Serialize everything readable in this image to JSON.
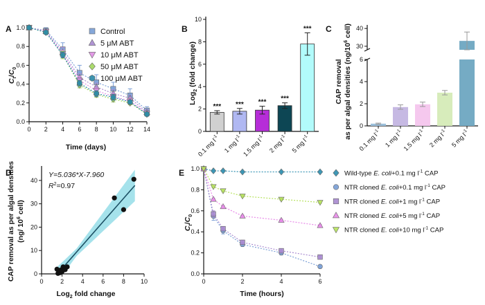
{
  "chart_data": [
    {
      "panel": "A",
      "type": "line",
      "xlabel_main": "Time",
      "xlabel_unit": "(days)",
      "ylabel": "Ct/C0",
      "ylabel_parts": {
        "c": "C",
        "t": "t",
        "sep": "/",
        "zero": "0"
      },
      "x": [
        0,
        2,
        4,
        6,
        8,
        10,
        12,
        14
      ],
      "xlim": [
        0,
        14
      ],
      "ylim": [
        0,
        1.0
      ],
      "xticks": [
        "0",
        "2",
        "4",
        "6",
        "8",
        "10",
        "12",
        "14"
      ],
      "yticks": [
        "0.0",
        "0.2",
        "0.4",
        "0.6",
        "0.8",
        "1.0"
      ],
      "series": [
        {
          "name": "Control",
          "marker": "square",
          "color": "#7b9fd6",
          "values": [
            1.0,
            0.97,
            0.77,
            0.52,
            0.42,
            0.35,
            0.28,
            0.12
          ],
          "errors": [
            0.02,
            0.03,
            0.07,
            0.08,
            0.08,
            0.07,
            0.07,
            0.04
          ]
        },
        {
          "name": "5 μM ABT",
          "marker": "triangle-up",
          "color": "#a98bd0",
          "values": [
            1.0,
            0.96,
            0.74,
            0.47,
            0.37,
            0.3,
            0.25,
            0.1
          ],
          "errors": [
            0.02,
            0.02,
            0.05,
            0.04,
            0.04,
            0.04,
            0.03,
            0.03
          ]
        },
        {
          "name": "10 μM ABT",
          "marker": "triangle-down",
          "color": "#e090e4",
          "values": [
            1.0,
            0.96,
            0.72,
            0.44,
            0.33,
            0.27,
            0.22,
            0.09
          ],
          "errors": [
            0.02,
            0.02,
            0.04,
            0.04,
            0.03,
            0.03,
            0.03,
            0.02
          ]
        },
        {
          "name": "50 μM ABT",
          "marker": "diamond",
          "color": "#a4d860",
          "values": [
            1.0,
            0.95,
            0.71,
            0.39,
            0.29,
            0.24,
            0.2,
            0.08
          ],
          "errors": [
            0.02,
            0.02,
            0.04,
            0.03,
            0.03,
            0.03,
            0.02,
            0.02
          ]
        },
        {
          "name": "100 μM ABT",
          "marker": "hexagon",
          "color": "#2b8aa8",
          "values": [
            1.0,
            0.95,
            0.71,
            0.41,
            0.3,
            0.26,
            0.21,
            0.08
          ],
          "errors": [
            0.02,
            0.02,
            0.03,
            0.03,
            0.03,
            0.03,
            0.02,
            0.02
          ]
        }
      ]
    },
    {
      "panel": "B",
      "type": "bar",
      "ylabel": "Log2 (fold change)",
      "ylabel_parts": {
        "pre": "Log",
        "sub": "2",
        "post": " (fold change)"
      },
      "categories": [
        "0.1 mg l-1",
        "1 mg l-1",
        "1.5 mg l-1",
        "2 mg l-1",
        "5 mg l-1"
      ],
      "category_parts": [
        {
          "n": "0.1 mg l",
          "s": "-1"
        },
        {
          "n": "1 mg l",
          "s": "-1"
        },
        {
          "n": "1.5 mg l",
          "s": "-1"
        },
        {
          "n": "2 mg l",
          "s": "-1"
        },
        {
          "n": "5 mg l",
          "s": "-1"
        }
      ],
      "values": [
        1.7,
        1.8,
        1.9,
        2.3,
        7.8
      ],
      "errors": [
        0.15,
        0.25,
        0.35,
        0.25,
        1.0
      ],
      "colors": [
        "#d0d0d0",
        "#b0b8f2",
        "#b62dd8",
        "#0d4654",
        "#b2fbfb"
      ],
      "annotations": [
        "***",
        "***",
        "***",
        "***",
        "***"
      ],
      "ylim": [
        0,
        10
      ],
      "yticks": [
        "0",
        "2",
        "4",
        "6",
        "8",
        "10"
      ]
    },
    {
      "panel": "C",
      "type": "bar",
      "ylabel_line1": "CAP removal",
      "ylabel_line2_pre": "as per algal densities (ng/10",
      "ylabel_line2_sup": "6",
      "ylabel_line2_post": " cell)",
      "categories": [
        "0.1 mg l-1",
        "1 mg l-1",
        "1.5 mg l-1",
        "2 mg l-1",
        "5 mg l-1"
      ],
      "category_parts": [
        {
          "n": "0.1 mg l",
          "s": "-1"
        },
        {
          "n": "1 mg l",
          "s": "-1"
        },
        {
          "n": "1.5 mg l",
          "s": "-1"
        },
        {
          "n": "2 mg l",
          "s": "-1"
        },
        {
          "n": "5 mg l",
          "s": "-1"
        }
      ],
      "values": [
        0.2,
        1.7,
        1.95,
        3.0,
        33
      ],
      "errors": [
        0.05,
        0.2,
        0.2,
        0.2,
        5
      ],
      "colors": [
        "#9cc0dc",
        "#c6b9e3",
        "#f5c8ee",
        "#d7ecbb",
        "#75abc4"
      ],
      "axis_break": [
        6,
        28
      ],
      "ylim": [
        0,
        42
      ],
      "yticks_lower": [
        "0",
        "2",
        "4",
        "6"
      ],
      "yticks_upper": [
        "30",
        "40"
      ]
    },
    {
      "panel": "D",
      "type": "scatter",
      "xlabel_pre": "Log",
      "xlabel_sub": "2",
      "xlabel_post": " fold change",
      "ylabel_line1": "CAP removal as per algal densities",
      "ylabel_line2_pre": "(ng/ 10",
      "ylabel_line2_sup": "6",
      "ylabel_line2_post": " cell)",
      "points": [
        [
          1.5,
          2.0
        ],
        [
          1.6,
          0.2
        ],
        [
          1.7,
          1.5
        ],
        [
          1.8,
          0.5
        ],
        [
          1.9,
          1.7
        ],
        [
          2.0,
          1.0
        ],
        [
          2.1,
          3.0
        ],
        [
          2.2,
          2.5
        ],
        [
          2.3,
          1.8
        ],
        [
          2.5,
          3.0
        ],
        [
          7.1,
          32.5
        ],
        [
          8.0,
          27.5
        ],
        [
          9.0,
          40.5
        ]
      ],
      "fit_slope": 5.036,
      "fit_intercept": -7.96,
      "equation_pre": "Y=5.036*X-7.960",
      "r2_label": "R",
      "r2_sup": "2",
      "r2_value": "=0.97",
      "xlim": [
        0,
        10
      ],
      "ylim": [
        0,
        45
      ],
      "xticks": [
        "0",
        "2",
        "4",
        "6",
        "8",
        "10"
      ],
      "yticks": [
        "0",
        "10",
        "20",
        "30",
        "40"
      ]
    },
    {
      "panel": "E",
      "type": "line",
      "xlabel": "Time (hours)",
      "ylabel": "Ct/C0",
      "ylabel_parts": {
        "c": "C",
        "t": "t",
        "sep": "/",
        "zero": "0"
      },
      "x": [
        0,
        0.5,
        1,
        2,
        4,
        6
      ],
      "xlim": [
        0,
        6
      ],
      "ylim": [
        0,
        1.0
      ],
      "xticks": [
        "0",
        "2",
        "4",
        "6"
      ],
      "yticks": [
        "0.0",
        "0.2",
        "0.4",
        "0.6",
        "0.8",
        "1.0"
      ],
      "series": [
        {
          "name": "Wild-type E. coli+0.1 mg l-1 CAP",
          "label_pre": "Wild-type ",
          "label_em": "E. coli",
          "label_post": "+0.1 mg l",
          "label_sup": "-1",
          "label_end": " CAP",
          "marker": "diamond",
          "color": "#2f8fb0",
          "values": [
            1.0,
            0.98,
            0.98,
            0.97,
            0.97,
            0.97
          ],
          "errors": [
            0,
            0,
            0,
            0,
            0,
            0
          ]
        },
        {
          "name": "NTR cloned E. coli+0.1 mg l-1 CAP",
          "label_pre": "NTR cloned ",
          "label_em": "E. coli",
          "label_post": "+0.1 mg l",
          "label_sup": "-1",
          "label_end": " CAP",
          "marker": "circle",
          "color": "#7b9fd6",
          "values": [
            1.0,
            0.55,
            0.41,
            0.28,
            0.2,
            0.07
          ],
          "errors": [
            0,
            0.04,
            0.03,
            0.02,
            0.02,
            0.01
          ]
        },
        {
          "name": "NTR cloned E. coli+1 mg l-1 CAP",
          "label_pre": "NTR cloned ",
          "label_em": "E. coli",
          "label_post": "+1 mg l",
          "label_sup": "-1",
          "label_end": " CAP",
          "marker": "square",
          "color": "#a98bd0",
          "values": [
            1.0,
            0.57,
            0.43,
            0.3,
            0.22,
            0.16
          ],
          "errors": [
            0,
            0.03,
            0.02,
            0.02,
            0.02,
            0.01
          ]
        },
        {
          "name": "NTR cloned E. coli+5 mg l-1 CAP",
          "label_pre": "NTR cloned ",
          "label_em": "E. coli",
          "label_post": "+5 mg l",
          "label_sup": "-1",
          "label_end": " CAP",
          "marker": "triangle-up",
          "color": "#e78ae8",
          "values": [
            1.0,
            0.71,
            0.64,
            0.55,
            0.51,
            0.46
          ],
          "errors": [
            0,
            0.01,
            0.01,
            0.01,
            0.01,
            0.01
          ]
        },
        {
          "name": "NTR cloned E. coli+10 mg l-1 CAP",
          "label_pre": "NTR cloned ",
          "label_em": "E. coli",
          "label_post": "+10 mg l",
          "label_sup": "-1",
          "label_end": " CAP",
          "marker": "triangle-down",
          "color": "#b6e25d",
          "values": [
            1.0,
            0.83,
            0.79,
            0.74,
            0.71,
            0.68
          ],
          "errors": [
            0,
            0.01,
            0.01,
            0.01,
            0.01,
            0.01
          ]
        }
      ]
    }
  ]
}
